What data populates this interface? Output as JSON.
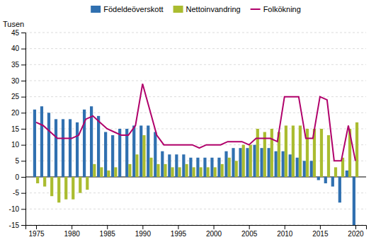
{
  "chart_data": {
    "type": "bar",
    "y_label": "Tusen",
    "x": [
      1975,
      1976,
      1977,
      1978,
      1979,
      1980,
      1981,
      1982,
      1983,
      1984,
      1985,
      1986,
      1987,
      1988,
      1989,
      1990,
      1991,
      1992,
      1993,
      1994,
      1995,
      1996,
      1997,
      1998,
      1999,
      2000,
      2001,
      2002,
      2003,
      2004,
      2005,
      2006,
      2007,
      2008,
      2009,
      2010,
      2011,
      2012,
      2013,
      2014,
      2015,
      2016,
      2017,
      2018,
      2019,
      2020
    ],
    "series": [
      {
        "name": "Födeldeöverskott",
        "type": "bar",
        "color": "#3070B0",
        "values": [
          21,
          22,
          20,
          18,
          18,
          18,
          17,
          21,
          22,
          19,
          14,
          13,
          15,
          15,
          16,
          16,
          16,
          14,
          8,
          7,
          7,
          7,
          6,
          6,
          6,
          6,
          6,
          8,
          9,
          9,
          9,
          10,
          9,
          9,
          8,
          8,
          7,
          6,
          5,
          5,
          -1,
          -2,
          -3,
          -8,
          2,
          -15
        ]
      },
      {
        "name": "Nettoinvandring",
        "type": "bar",
        "color": "#AABC30",
        "values": [
          -2,
          -3,
          -6,
          -8,
          -7,
          -7,
          -5,
          -4,
          4,
          3,
          2,
          3,
          0,
          4,
          7,
          13,
          6,
          4,
          4,
          3,
          3,
          4,
          3,
          3,
          3,
          3,
          4,
          6,
          5,
          10,
          10,
          15,
          14,
          15,
          14,
          16,
          16,
          16,
          15,
          15,
          15,
          13,
          3,
          6,
          15,
          17
        ]
      },
      {
        "name": "Folkökning",
        "type": "line",
        "color": "#B0006A",
        "values": [
          17,
          16,
          14,
          12,
          12,
          12,
          13,
          18,
          19,
          17,
          15,
          14,
          13,
          13,
          16,
          29,
          21,
          13,
          10,
          10,
          10,
          10,
          10,
          9,
          10,
          10,
          10,
          11,
          11,
          11,
          10,
          12,
          12,
          12,
          11,
          25,
          25,
          25,
          12,
          12,
          25,
          24,
          5,
          5,
          16,
          5
        ]
      }
    ],
    "xlim": [
      1973.5,
      2021.5
    ],
    "xticks": [
      1975,
      1980,
      1985,
      1990,
      1995,
      2000,
      2005,
      2010,
      2015,
      2020
    ],
    "ylim": [
      -15,
      45
    ],
    "yticks": [
      -15,
      -10,
      -5,
      0,
      5,
      10,
      15,
      20,
      25,
      30,
      35,
      40,
      45
    ],
    "grid": true,
    "legend": "top"
  }
}
